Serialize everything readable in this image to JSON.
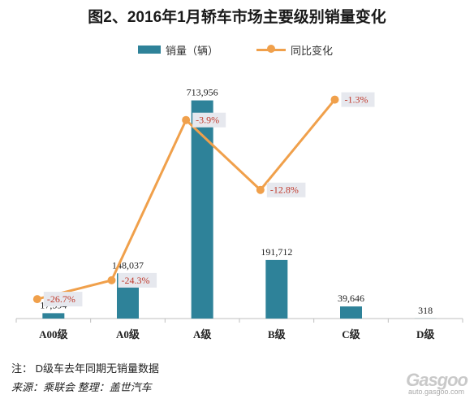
{
  "title": "图2、2016年1月轿车市场主要级别销量变化",
  "legend": {
    "bar_label": "销量（辆）",
    "line_label": "同比变化"
  },
  "colors": {
    "bar": "#2e8299",
    "line": "#f0a04b",
    "label_box": "#e6e8ee",
    "pct_text": "#c0392b"
  },
  "chart_data": {
    "type": "bar",
    "categories": [
      "A00级",
      "A0级",
      "A级",
      "B级",
      "C级",
      "D级"
    ],
    "series": [
      {
        "name": "销量（辆）",
        "type": "bar",
        "values": [
          17594,
          148037,
          713956,
          191712,
          39646,
          318
        ],
        "labels": [
          "17,594",
          "148,037",
          "713,956",
          "191,712",
          "39,646",
          "318"
        ]
      },
      {
        "name": "同比变化",
        "type": "line",
        "values": [
          -26.7,
          -24.3,
          -3.9,
          -12.8,
          -1.3,
          null
        ],
        "labels": [
          "-26.7%",
          "-24.3%",
          "-3.9%",
          "-12.8%",
          "-1.3%",
          ""
        ]
      }
    ],
    "ylim": [
      0,
      750000
    ],
    "line_ylim": [
      -30,
      0
    ]
  },
  "note": "注： D级车去年同期无销量数据",
  "source": "来源：乘联会 整理：盖世汽车",
  "watermark": {
    "logo": "Gasgoo",
    "url": "auto.gasgoo.com"
  }
}
